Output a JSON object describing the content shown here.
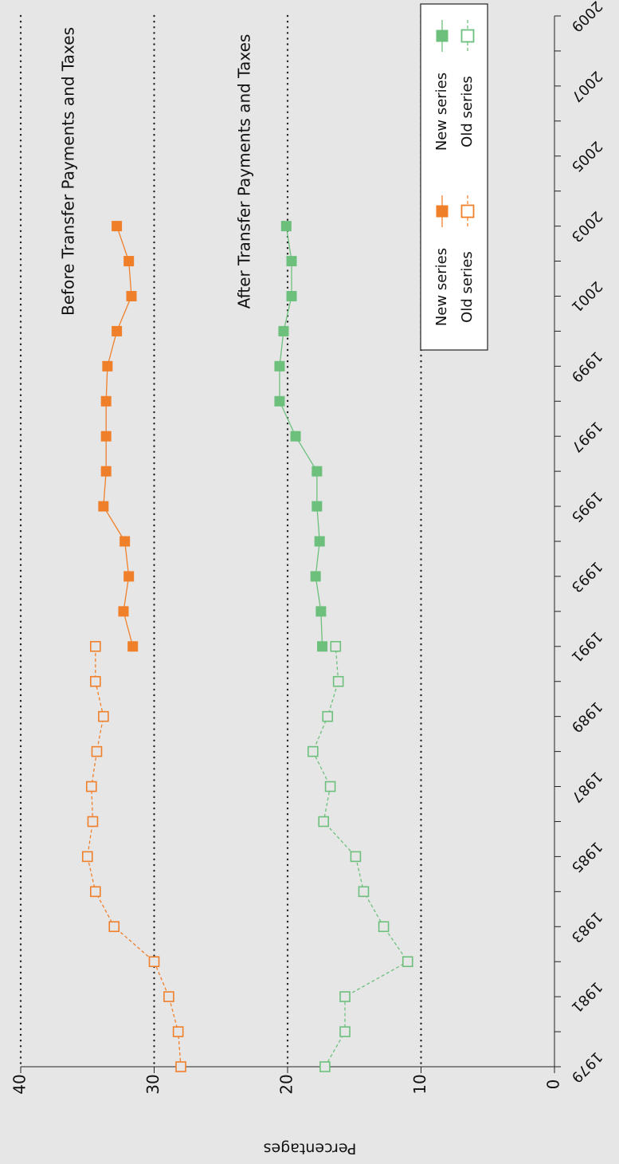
{
  "chart_data": {
    "type": "line",
    "xlabel": "",
    "ylabel": "Percentages",
    "ylim": [
      0,
      40
    ],
    "xlim": [
      1979,
      2009
    ],
    "y_ticks": [
      "0",
      "10",
      "20",
      "30",
      "40"
    ],
    "x_ticks": [
      "1979",
      "1981",
      "1983",
      "1985",
      "1987",
      "1989",
      "1991",
      "1993",
      "1995",
      "1997",
      "1999",
      "2001",
      "2003",
      "2005",
      "2007",
      "2009"
    ],
    "grid": "dotted horizontal lines at 10, 20, 30, 40",
    "orientation": "rotated 90 degrees clockwise",
    "annotations": [
      {
        "text": "Before Transfer Payments and Taxes"
      },
      {
        "text": "After Transfer Payments and Taxes"
      }
    ],
    "legend": {
      "placement": "top-right",
      "entries": [
        {
          "label": "New series",
          "color": "#f07f2a",
          "filled": true,
          "dashed": false
        },
        {
          "label": "Old series",
          "color": "#f07f2a",
          "filled": false,
          "dashed": true
        },
        {
          "label": "New series",
          "color": "#6cc07c",
          "filled": true,
          "dashed": false
        },
        {
          "label": "Old series",
          "color": "#6cc07c",
          "filled": false,
          "dashed": true
        }
      ]
    },
    "series": [
      {
        "group": "Before Transfer Payments and Taxes",
        "name": "Old series",
        "color": "#f07f2a",
        "filled": false,
        "dashed": true,
        "x": [
          1979,
          1980,
          1981,
          1982,
          1983,
          1984,
          1985,
          1986,
          1987,
          1988,
          1989,
          1990,
          1991
        ],
        "y": [
          28.0,
          28.2,
          28.9,
          30.0,
          33.0,
          34.4,
          35.0,
          34.6,
          34.7,
          34.3,
          33.8,
          34.4,
          34.4
        ]
      },
      {
        "group": "Before Transfer Payments and Taxes",
        "name": "New series",
        "color": "#f07f2a",
        "filled": true,
        "dashed": false,
        "x": [
          1991,
          1992,
          1993,
          1994,
          1995,
          1996,
          1997,
          1998,
          1999,
          2000,
          2001,
          2002,
          2003
        ],
        "y": [
          31.6,
          32.3,
          31.9,
          32.2,
          33.8,
          33.6,
          33.6,
          33.6,
          33.5,
          32.8,
          31.7,
          31.9,
          32.8
        ]
      },
      {
        "group": "After Transfer Payments and Taxes",
        "name": "Old series",
        "color": "#6cc07c",
        "filled": false,
        "dashed": true,
        "x": [
          1979,
          1980,
          1981,
          1982,
          1983,
          1984,
          1985,
          1986,
          1987,
          1988,
          1989,
          1990,
          1991
        ],
        "y": [
          17.2,
          15.7,
          15.7,
          11.0,
          12.8,
          14.3,
          14.9,
          17.3,
          16.8,
          18.1,
          17.0,
          16.2,
          16.4
        ]
      },
      {
        "group": "After Transfer Payments and Taxes",
        "name": "New series",
        "color": "#6cc07c",
        "filled": true,
        "dashed": false,
        "x": [
          1991,
          1992,
          1993,
          1994,
          1995,
          1996,
          1997,
          1998,
          1999,
          2000,
          2001,
          2002,
          2003
        ],
        "y": [
          17.4,
          17.5,
          17.9,
          17.6,
          17.8,
          17.8,
          19.4,
          20.6,
          20.6,
          20.3,
          19.7,
          19.7,
          20.1
        ]
      }
    ]
  }
}
